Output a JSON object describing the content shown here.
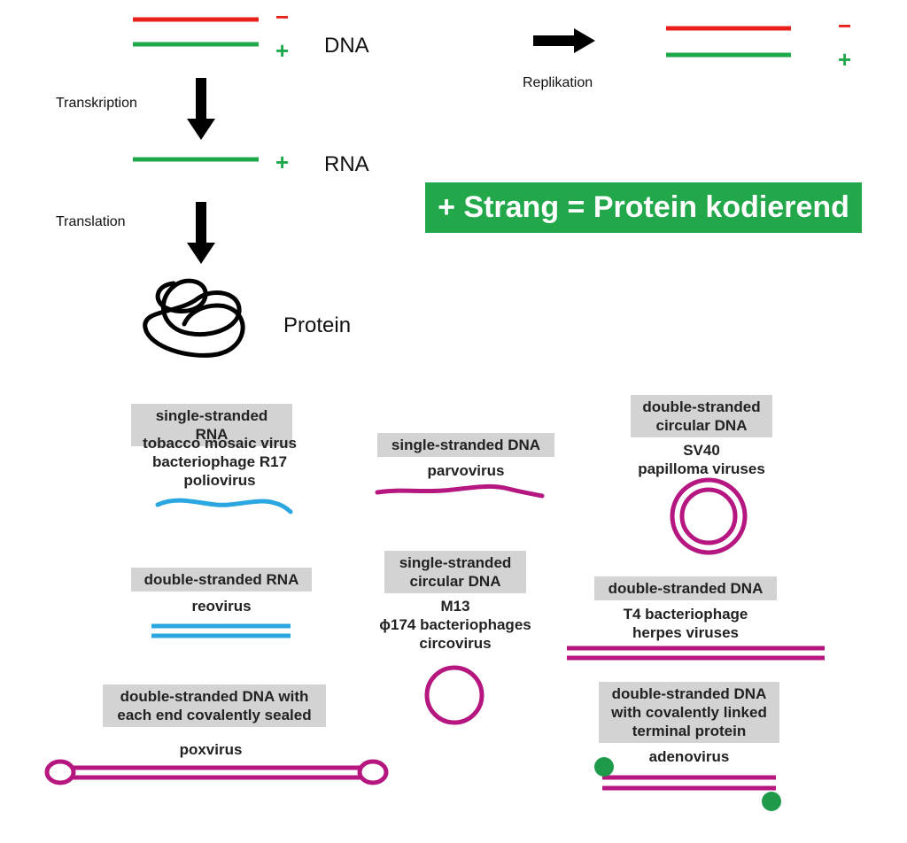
{
  "top": {
    "dna_label": "DNA",
    "rna_label": "RNA",
    "protein_label": "Protein",
    "transcription_label": "Transkription",
    "translation_label": "Translation",
    "replication_label": "Replikation",
    "minus_sign": "−",
    "plus_sign": "+",
    "banner_text": "+ Strang = Protein kodierend",
    "colors": {
      "minus_strand": "#e8201a",
      "plus_strand": "#1fa84a",
      "banner": "#22a84a"
    }
  },
  "genomes": {
    "ss_rna": {
      "title": "single-stranded RNA",
      "examples": "tobacco mosaic virus\nbacteriophage R17\npoliovirus"
    },
    "ss_dna": {
      "title": "single-stranded DNA",
      "examples": "parvovirus"
    },
    "ds_circ_dna": {
      "title": "double-stranded\ncircular DNA",
      "examples": "SV40\npapilloma viruses"
    },
    "ds_rna": {
      "title": "double-stranded RNA",
      "examples": "reovirus"
    },
    "ss_circ_dna": {
      "title": "single-stranded\ncircular DNA",
      "examples": "M13\nϕ174 bacteriophages\ncircovirus"
    },
    "ds_dna": {
      "title": "double-stranded DNA",
      "examples": "T4 bacteriophage\nherpes viruses"
    },
    "ds_dna_sealed": {
      "title": "double-stranded DNA with\neach end covalently sealed",
      "examples": "poxvirus"
    },
    "ds_dna_protein": {
      "title": "double-stranded DNA\nwith covalently linked\nterminal protein",
      "examples": "adenovirus"
    },
    "colors": {
      "rna": "#2aa6e0",
      "dna": "#b5167f",
      "terminal_protein": "#1f9a4a"
    }
  }
}
